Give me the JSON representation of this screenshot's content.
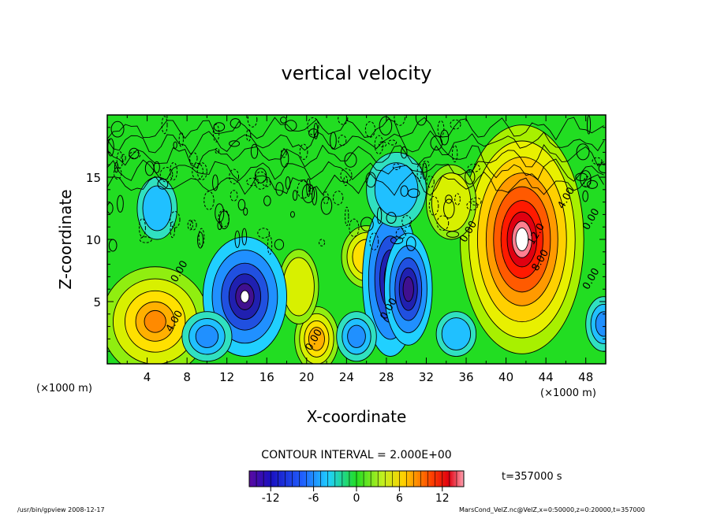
{
  "chart_data": {
    "type": "heatmap",
    "title": "vertical velocity",
    "xlabel": "X-coordinate",
    "ylabel": "Z-coordinate",
    "x_unit": "(×1000 m)",
    "y_unit": "(×1000 m)",
    "xlim": [
      0,
      50
    ],
    "ylim": [
      0,
      20
    ],
    "x_ticks": [
      4,
      8,
      12,
      16,
      20,
      24,
      28,
      32,
      36,
      40,
      44,
      48
    ],
    "y_ticks": [
      5,
      10,
      15
    ],
    "contour_interval_label": "CONTOUR INTERVAL = 2.000E+00",
    "time_label": "t=357000 s",
    "colorbar_range": [
      -15,
      15
    ],
    "colorbar_ticks": [
      "-12",
      "-6",
      "0",
      "6",
      "12"
    ],
    "contour_labels": [
      {
        "text": "4.00",
        "x": 7,
        "z": 3.3
      },
      {
        "text": "0.00",
        "x": 7.5,
        "z": 7.3
      },
      {
        "text": "0.00",
        "x": 21,
        "z": 1.8
      },
      {
        "text": "0.00",
        "x": 28.5,
        "z": 4.3
      },
      {
        "text": "0.00",
        "x": 36.5,
        "z": 10.5
      },
      {
        "text": "8.00",
        "x": 43.7,
        "z": 8.2
      },
      {
        "text": "12.0",
        "x": 43.3,
        "z": 10.3
      },
      {
        "text": "4.00",
        "x": 46.3,
        "z": 13.2
      },
      {
        "text": "0.00",
        "x": 48.8,
        "z": 11.5
      },
      {
        "text": "0.00",
        "x": 48.8,
        "z": 6.7
      }
    ],
    "features": [
      {
        "kind": "updraft",
        "x": 41.5,
        "z": 8.0,
        "peak": 15
      },
      {
        "kind": "updraft",
        "x": 4.0,
        "z": 2.5,
        "peak": 6
      },
      {
        "kind": "downdraft",
        "x": 13.8,
        "z": 5.0,
        "peak": -13
      },
      {
        "kind": "downdraft",
        "x": 28.0,
        "z": 6.5,
        "peak": -12
      }
    ]
  },
  "footer": {
    "left": "/usr/bin/gpview   2008-12-17",
    "right": "MarsCond_VelZ.nc@VelZ,x=0:50000,z=0:20000,t=357000"
  },
  "colors": {
    "background_field": "#22dd22",
    "updraft_core": "#ffffff",
    "downdraft_core": "#2020a0"
  }
}
